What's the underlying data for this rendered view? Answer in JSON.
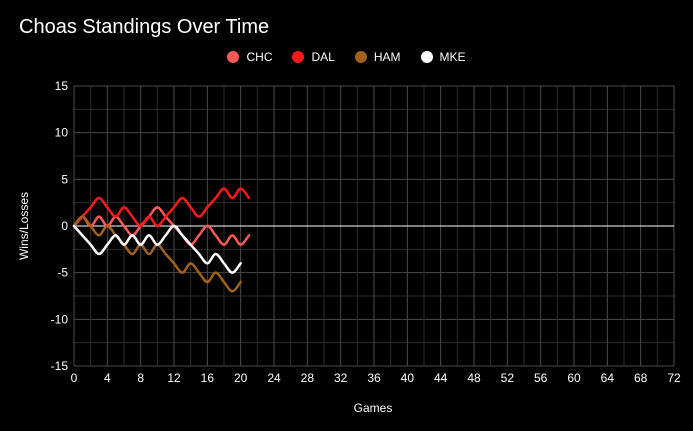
{
  "chart_data": {
    "type": "line",
    "title": "Choas Standings Over Time",
    "xlabel": "Games",
    "ylabel": "Wins/Losses",
    "xlim": [
      0,
      72
    ],
    "ylim": [
      -15,
      15
    ],
    "xticks": [
      0,
      4,
      8,
      12,
      16,
      20,
      24,
      28,
      32,
      36,
      40,
      44,
      48,
      52,
      56,
      60,
      64,
      68,
      72
    ],
    "yticks": [
      15,
      10,
      5,
      0,
      -5,
      -10,
      -15
    ],
    "grid": true,
    "legend_position": "top-center",
    "series": [
      {
        "name": "CHC",
        "color": "#ff5a5a",
        "x": [
          0,
          1,
          2,
          3,
          4,
          5,
          6,
          7,
          8,
          9,
          10,
          11,
          12,
          13,
          14,
          15,
          16,
          17,
          18,
          19,
          20,
          21
        ],
        "y": [
          0,
          1,
          0,
          1,
          0,
          1,
          0,
          -1,
          0,
          1,
          2,
          1,
          0,
          -1,
          -2,
          -1,
          0,
          -1,
          -2,
          -1,
          -2,
          -1
        ]
      },
      {
        "name": "DAL",
        "color": "#ff1a1a",
        "x": [
          0,
          1,
          2,
          3,
          4,
          5,
          6,
          7,
          8,
          9,
          10,
          11,
          12,
          13,
          14,
          15,
          16,
          17,
          18,
          19,
          20,
          21
        ],
        "y": [
          0,
          1,
          2,
          3,
          2,
          1,
          2,
          1,
          0,
          1,
          0,
          1,
          2,
          3,
          2,
          1,
          2,
          3,
          4,
          3,
          4,
          3
        ]
      },
      {
        "name": "HAM",
        "color": "#a0621e",
        "x": [
          0,
          1,
          2,
          3,
          4,
          5,
          6,
          7,
          8,
          9,
          10,
          11,
          12,
          13,
          14,
          15,
          16,
          17,
          18,
          19,
          20
        ],
        "y": [
          0,
          1,
          0,
          -1,
          0,
          -1,
          -2,
          -3,
          -2,
          -3,
          -2,
          -3,
          -4,
          -5,
          -4,
          -5,
          -6,
          -5,
          -6,
          -7,
          -6
        ]
      },
      {
        "name": "MKE",
        "color": "#ffffff",
        "x": [
          0,
          1,
          2,
          3,
          4,
          5,
          6,
          7,
          8,
          9,
          10,
          11,
          12,
          13,
          14,
          15,
          16,
          17,
          18,
          19,
          20
        ],
        "y": [
          0,
          -1,
          -2,
          -3,
          -2,
          -1,
          -2,
          -1,
          -2,
          -1,
          -2,
          -1,
          0,
          -1,
          -2,
          -3,
          -4,
          -3,
          -4,
          -5,
          -4
        ]
      }
    ]
  }
}
